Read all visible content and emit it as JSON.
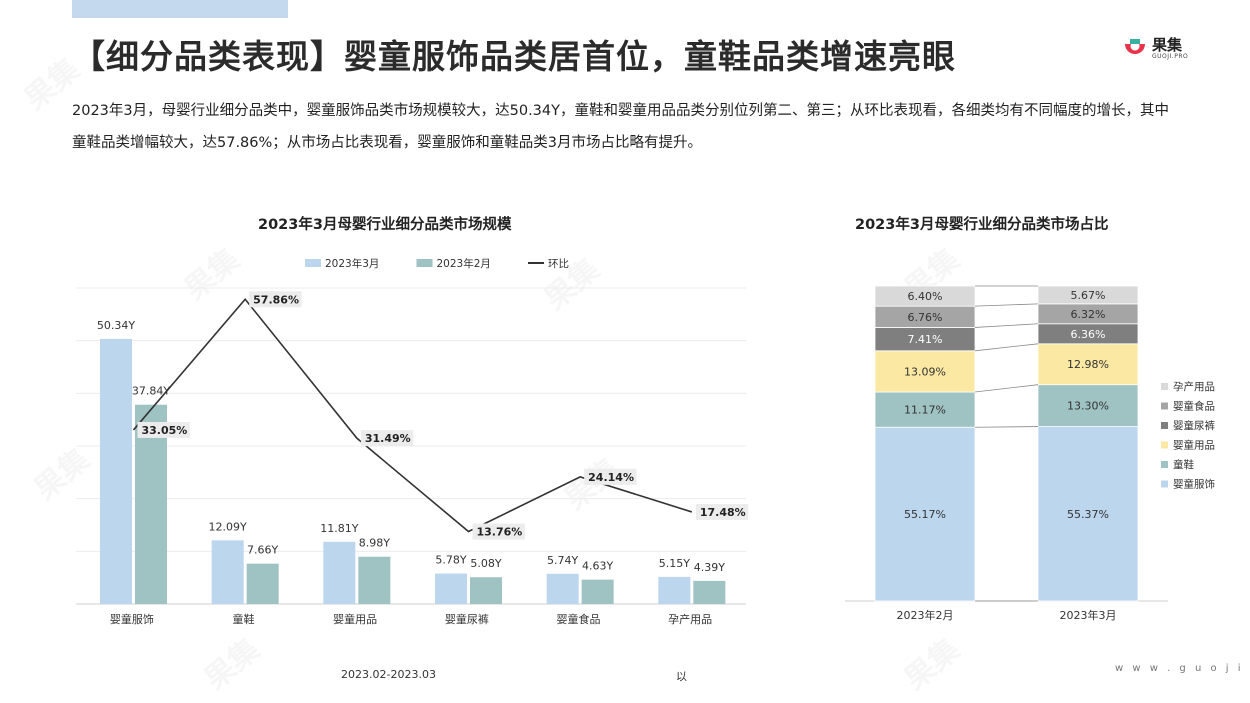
{
  "header": {
    "title": "【细分品类表现】婴童服饰品类居首位，童鞋品类增速亮眼",
    "logo_text": "果集",
    "logo_sub": "GUOJI.PRO"
  },
  "description": "2023年3月，母婴行业细分品类中，婴童服饰品类市场规模较大，达50.34Y，童鞋和婴童用品品类分别位列第二、第三；从环比表现看，各细类均有不同幅度的增长，其中童鞋品类增幅较大，达57.86%；从市场占比表现看，婴童服饰和童鞋品类3月市场占比略有提升。",
  "footer": {
    "period": "2023.02-2023.03",
    "extra": "以",
    "url": "w w w . g u o j i . p r o"
  },
  "colors": {
    "march": "#bcd6ee",
    "february": "#9fc2c2",
    "line": "#333333",
    "diaper": "#7f7f7f",
    "food": "#a5a5a5",
    "maternity": "#d9d9d9",
    "supplies": "#fbe9a3",
    "shoes": "#9fc2c2",
    "clothing": "#bcd6ee"
  },
  "chart_data": [
    {
      "type": "bar",
      "title": "2023年3月母婴行业细分品类市场规模",
      "categories": [
        "婴童服饰",
        "童鞋",
        "婴童用品",
        "婴童尿裤",
        "婴童食品",
        "孕产用品"
      ],
      "series": [
        {
          "name": "2023年3月",
          "type": "bar",
          "values": [
            50.34,
            12.09,
            11.81,
            5.78,
            5.74,
            5.15
          ],
          "labels": [
            "50.34Y",
            "12.09Y",
            "11.81Y",
            "5.78Y",
            "5.74Y",
            "5.15Y"
          ]
        },
        {
          "name": "2023年2月",
          "type": "bar",
          "values": [
            37.84,
            7.66,
            8.98,
            5.08,
            4.63,
            4.39
          ],
          "labels": [
            "37.84Y",
            "7.66Y",
            "8.98Y",
            "5.08Y",
            "4.63Y",
            "4.39Y"
          ]
        },
        {
          "name": "环比",
          "type": "line",
          "values": [
            33.05,
            57.86,
            31.49,
            13.76,
            24.14,
            17.48
          ],
          "labels": [
            "33.05%",
            "57.86%",
            "31.49%",
            "13.76%",
            "24.14%",
            "17.48%"
          ]
        }
      ],
      "ylim": [
        0,
        60
      ],
      "y2lim": [
        0,
        60
      ],
      "legend": "top-center",
      "grid": true
    },
    {
      "type": "bar",
      "stacked": "percent",
      "title": "2023年3月母婴行业细分品类市场占比",
      "categories": [
        "2023年2月",
        "2023年3月"
      ],
      "series": [
        {
          "name": "婴童服饰",
          "values": [
            55.17,
            55.37
          ],
          "labels": [
            "55.17%",
            "55.37%"
          ]
        },
        {
          "name": "童鞋",
          "values": [
            11.17,
            13.3
          ],
          "labels": [
            "11.17%",
            "13.30%"
          ]
        },
        {
          "name": "婴童用品",
          "values": [
            13.09,
            12.98
          ],
          "labels": [
            "13.09%",
            "12.98%"
          ]
        },
        {
          "name": "婴童尿裤",
          "values": [
            7.41,
            6.36
          ],
          "labels": [
            "7.41%",
            "6.36%"
          ]
        },
        {
          "name": "婴童食品",
          "values": [
            6.76,
            6.32
          ],
          "labels": [
            "6.76%",
            "6.32%"
          ]
        },
        {
          "name": "孕产用品",
          "values": [
            6.4,
            5.67
          ],
          "labels": [
            "6.40%",
            "5.67%"
          ]
        }
      ],
      "legend_order": [
        "孕产用品",
        "婴童食品",
        "婴童尿裤",
        "婴童用品",
        "童鞋",
        "婴童服饰"
      ],
      "ylim": [
        0,
        100
      ],
      "legend": "right"
    }
  ]
}
